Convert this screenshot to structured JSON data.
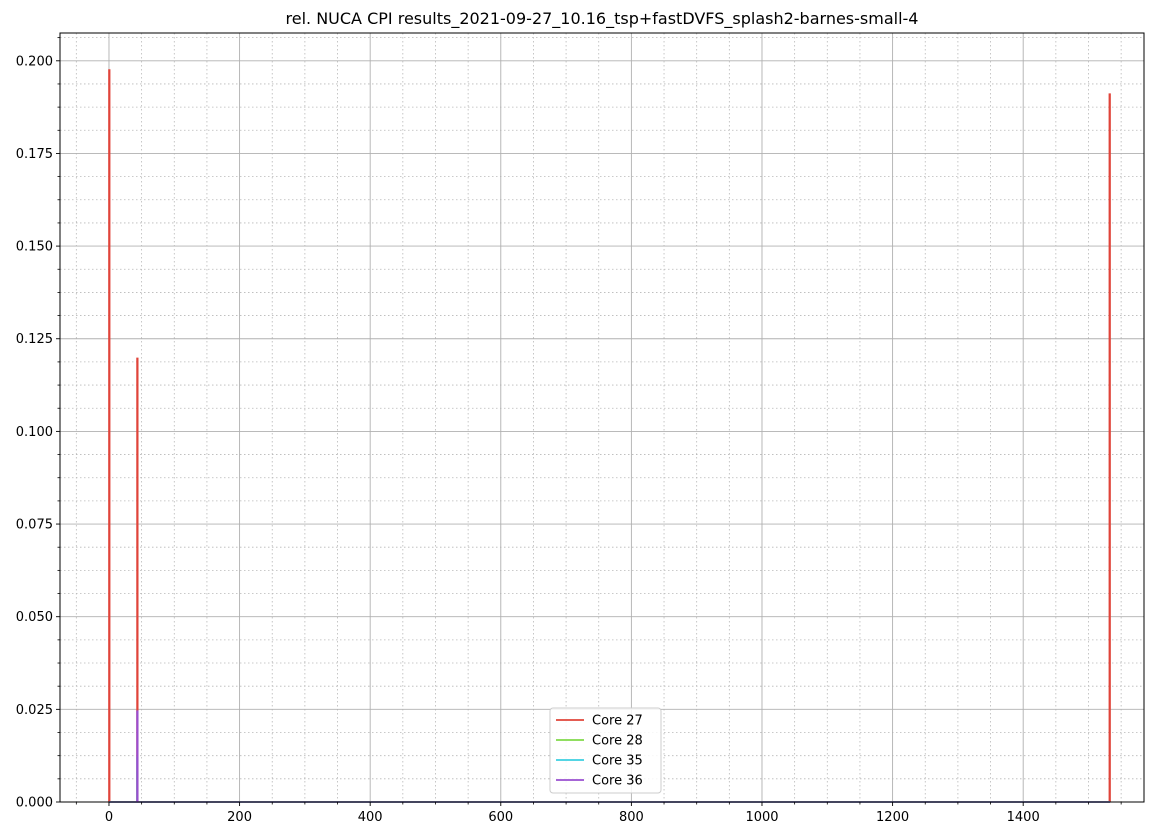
{
  "chart_data": {
    "type": "line",
    "title": "rel. NUCA CPI results_2021-09-27_10.16_tsp+fastDVFS_splash2-barnes-small-4",
    "xlabel": "",
    "ylabel": "",
    "xlim": [
      -75,
      1585
    ],
    "ylim": [
      0,
      0.2075
    ],
    "x_ticks": [
      0,
      200,
      400,
      600,
      800,
      1000,
      1200,
      1400,
      1600
    ],
    "x_tick_labels": [
      "0",
      "200",
      "400",
      "600",
      "800",
      "1000",
      "1200",
      "1400",
      "1600"
    ],
    "y_ticks": [
      0,
      0.025,
      0.05,
      0.075,
      0.1,
      0.125,
      0.15,
      0.175,
      0.2
    ],
    "y_tick_labels": [
      "0.000",
      "0.025",
      "0.050",
      "0.075",
      "0.100",
      "0.125",
      "0.150",
      "0.175",
      "0.200"
    ],
    "x_minor_step": 50,
    "y_minor_step": 0.00625,
    "grid": true,
    "legend_position": "bottom-center",
    "series": [
      {
        "name": "Core 27",
        "color": "#e0443a",
        "x": [
          0,
          0,
          1,
          1,
          43,
          43,
          44,
          44,
          1532,
          1532,
          1533,
          1533
        ],
        "y": [
          0,
          0.1975,
          0.1975,
          0,
          0,
          0.1197,
          0.1197,
          0,
          0,
          0.191,
          0.191,
          0
        ]
      },
      {
        "name": "Core 28",
        "color": "#80d94a",
        "x": [
          0,
          43,
          43,
          44,
          44,
          1533
        ],
        "y": [
          0,
          0,
          0.008,
          0.008,
          0,
          0
        ]
      },
      {
        "name": "Core 35",
        "color": "#3ccfe0",
        "x": [
          0,
          43,
          43,
          44,
          44,
          1533
        ],
        "y": [
          0,
          0,
          0.012,
          0.012,
          0,
          0
        ]
      },
      {
        "name": "Core 36",
        "color": "#9a4fd0",
        "x": [
          0,
          43,
          43,
          44,
          44,
          1533
        ],
        "y": [
          0,
          0,
          0.0245,
          0.0245,
          0,
          0
        ]
      }
    ]
  }
}
